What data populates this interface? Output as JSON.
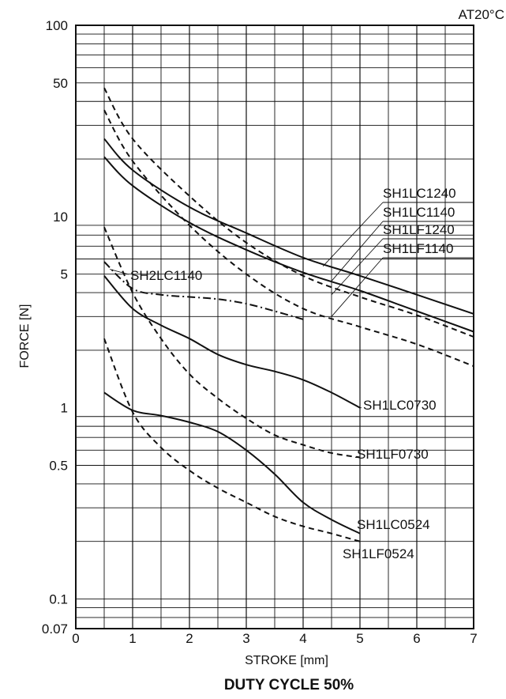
{
  "chart_data": {
    "type": "line",
    "title": "DUTY CYCLE 50%",
    "condition_note": "AT20°C",
    "xlabel": "STROKE  [mm]",
    "ylabel": "FORCE  [N]",
    "xlim": [
      0,
      7
    ],
    "ylim": [
      0.07,
      100
    ],
    "y_scale": "log",
    "grid": true,
    "x_ticks": [
      "0",
      "1",
      "2",
      "3",
      "4",
      "5",
      "6",
      "7"
    ],
    "y_ticks": [
      "100",
      "50",
      "10",
      "5",
      "1",
      "0.5",
      "0.1",
      "0.07"
    ],
    "series": [
      {
        "name": "SH1LC1240",
        "style": "solid",
        "x": [
          0.5,
          1,
          2,
          3,
          4,
          5,
          6,
          7
        ],
        "y": [
          25.5,
          17.5,
          11.2,
          8.2,
          6.1,
          4.9,
          3.9,
          3.1
        ]
      },
      {
        "name": "SH1LC1140",
        "style": "solid",
        "x": [
          0.5,
          1,
          2,
          3,
          4,
          5,
          6,
          7
        ],
        "y": [
          20.5,
          14.5,
          9.3,
          6.7,
          5.1,
          4.1,
          3.2,
          2.5
        ]
      },
      {
        "name": "SH1LF1240",
        "style": "dashed",
        "x": [
          0.5,
          1,
          2,
          3,
          4,
          5,
          6,
          7
        ],
        "y": [
          47,
          25.5,
          12.8,
          7.3,
          4.9,
          3.8,
          3.05,
          2.35
        ]
      },
      {
        "name": "SH1LF1140",
        "style": "dashed",
        "x": [
          0.5,
          1,
          2,
          3,
          4,
          5,
          6,
          7
        ],
        "y": [
          36,
          19.5,
          9.0,
          5.0,
          3.3,
          2.65,
          2.15,
          1.65
        ]
      },
      {
        "name": "SH2LC1140",
        "style": "dashdot",
        "x": [
          0.5,
          1,
          1.5,
          2,
          2.5,
          3,
          3.5,
          4
        ],
        "y": [
          5.8,
          4.2,
          3.9,
          3.8,
          3.7,
          3.5,
          3.2,
          2.9
        ]
      },
      {
        "name": "SH1LC0730",
        "style": "solid",
        "x": [
          0.5,
          1,
          1.5,
          2,
          2.5,
          3,
          3.5,
          4,
          4.5,
          5
        ],
        "y": [
          4.9,
          3.3,
          2.7,
          2.3,
          1.9,
          1.68,
          1.55,
          1.4,
          1.2,
          1.0
        ]
      },
      {
        "name": "SH1LF0730",
        "style": "dashed",
        "x": [
          0.5,
          1,
          1.5,
          2,
          2.5,
          3,
          3.5,
          4,
          4.5,
          5
        ],
        "y": [
          8.8,
          4.0,
          2.3,
          1.5,
          1.12,
          0.88,
          0.72,
          0.64,
          0.58,
          0.55
        ]
      },
      {
        "name": "SH1LC0524",
        "style": "solid",
        "x": [
          0.5,
          1,
          1.5,
          2,
          2.5,
          3,
          3.5,
          4,
          4.5,
          5
        ],
        "y": [
          1.2,
          0.97,
          0.91,
          0.84,
          0.75,
          0.6,
          0.45,
          0.32,
          0.26,
          0.22
        ]
      },
      {
        "name": "SH1LF0524",
        "style": "dashed",
        "x": [
          0.5,
          1,
          1.5,
          2,
          2.5,
          3,
          3.5,
          4,
          4.5,
          5
        ],
        "y": [
          2.3,
          0.95,
          0.62,
          0.47,
          0.38,
          0.32,
          0.27,
          0.24,
          0.22,
          0.2
        ]
      }
    ]
  }
}
